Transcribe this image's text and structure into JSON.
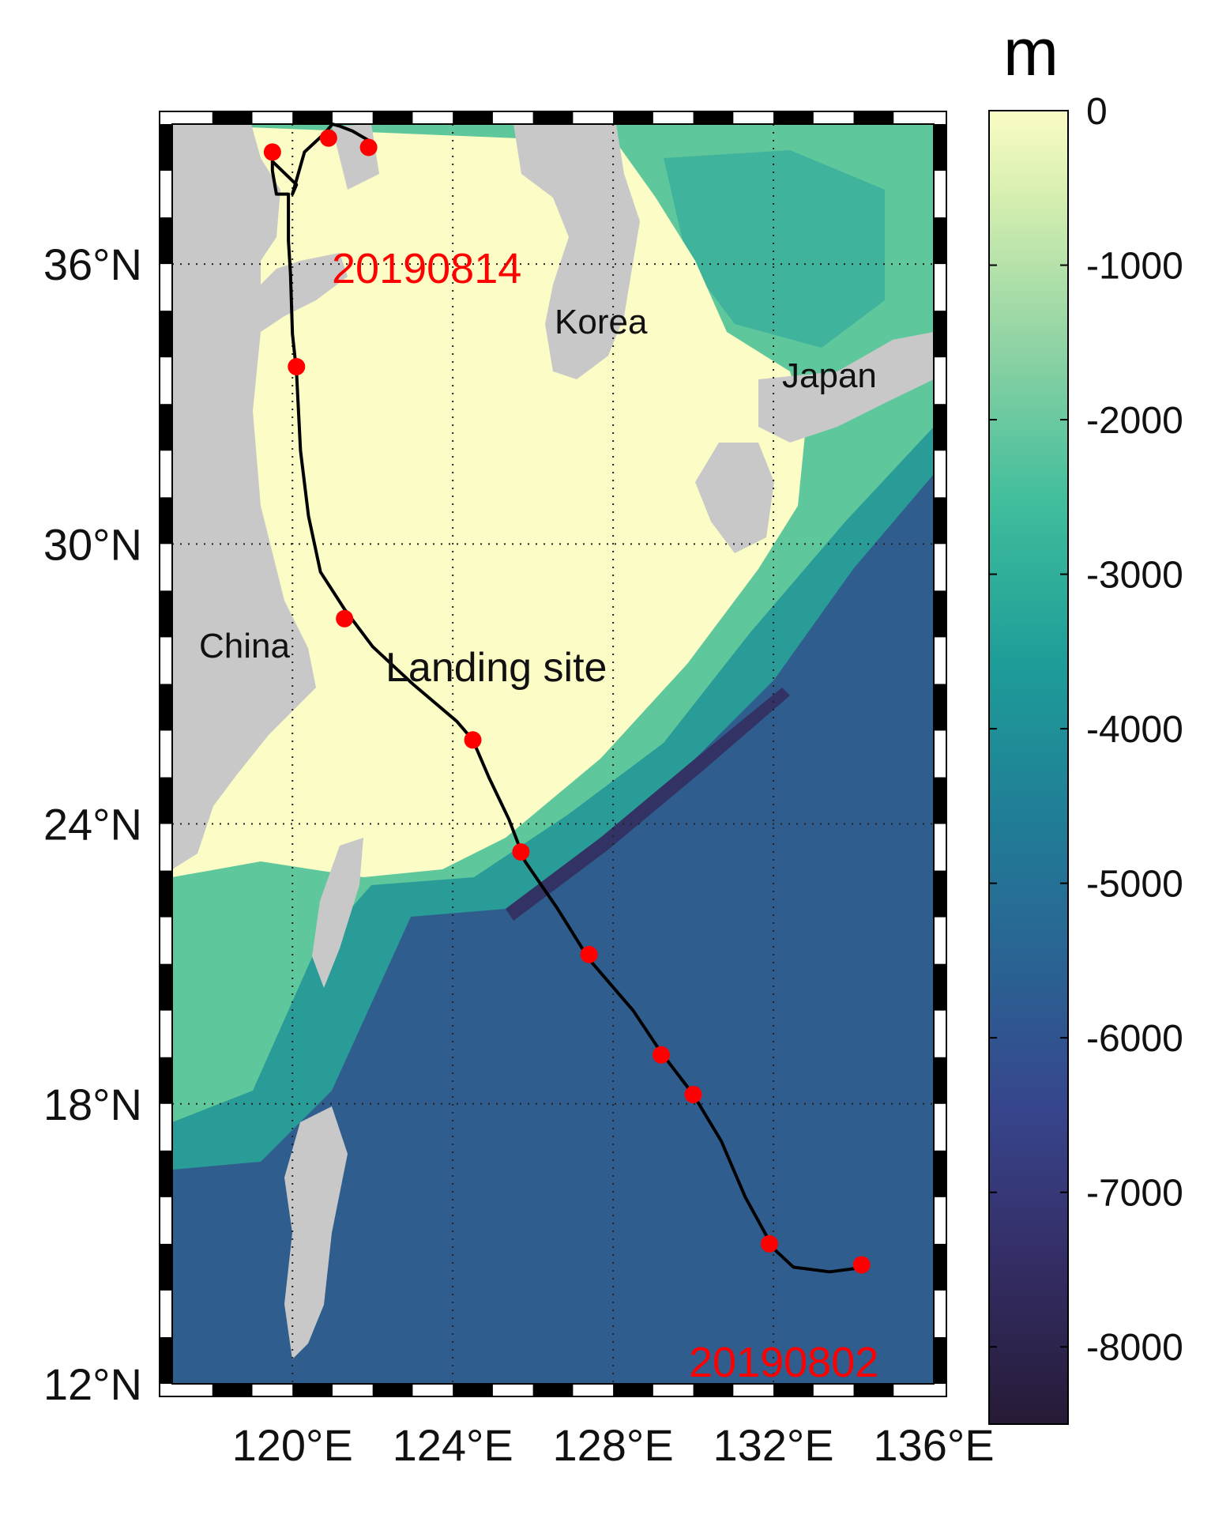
{
  "map": {
    "lon_ticks": [
      "120°E",
      "124°E",
      "128°E",
      "132°E",
      "136°E"
    ],
    "lat_ticks": [
      "12°N",
      "18°N",
      "24°N",
      "30°N",
      "36°N"
    ],
    "places": {
      "china": "China",
      "korea": "Korea",
      "japan": "Japan",
      "landing_site": "Landing site"
    },
    "dates": {
      "start": "20190802",
      "end": "20190814"
    },
    "colorbar": {
      "unit": "m",
      "ticks": [
        "0",
        "-1000",
        "-2000",
        "-3000",
        "-4000",
        "-5000",
        "-6000",
        "-7000",
        "-8000"
      ]
    },
    "colors": {
      "land": "#c8c8c8",
      "track": "#000000",
      "markers": "#ff0000",
      "shallow": "#fbfcc6",
      "deep": "#2b1d3d"
    }
  },
  "chart_data": {
    "type": "map",
    "xlim": [
      117,
      136
    ],
    "ylim": [
      12,
      39
    ],
    "xticks": [
      120,
      124,
      128,
      132,
      136
    ],
    "yticks": [
      12,
      18,
      24,
      30,
      36
    ],
    "colorbar_range": [
      -8500,
      0
    ],
    "track": {
      "lon": [
        134.3,
        133.4,
        132.5,
        132.0,
        131.3,
        130.7,
        130.0,
        129.2,
        128.5,
        127.4,
        126.6,
        125.8,
        125.4,
        124.9,
        124.5,
        124.1,
        123.0,
        122.0,
        121.3,
        120.7,
        120.4,
        120.2,
        120.1,
        120.0,
        119.95,
        119.9,
        119.9,
        119.6,
        119.5,
        119.5,
        120.1,
        120.0,
        120.3,
        120.8,
        121.0,
        121.2,
        121.5,
        121.8,
        122.0
      ],
      "lat": [
        14.5,
        14.4,
        14.5,
        14.9,
        16.0,
        17.2,
        18.2,
        19.1,
        20.0,
        21.1,
        22.2,
        23.2,
        24.1,
        25.0,
        25.8,
        26.2,
        27.0,
        27.8,
        28.6,
        29.4,
        30.6,
        32.0,
        33.7,
        34.5,
        35.8,
        36.5,
        37.5,
        37.5,
        38.0,
        38.2,
        37.7,
        37.5,
        38.4,
        38.8,
        39.0,
        38.95,
        38.85,
        38.7,
        38.6
      ]
    },
    "markers": {
      "lon": [
        134.2,
        131.9,
        130.0,
        129.2,
        127.4,
        125.7,
        124.5,
        121.3,
        120.1,
        119.5,
        120.9,
        121.9
      ],
      "lat": [
        14.55,
        15.0,
        18.2,
        19.05,
        21.2,
        23.4,
        25.8,
        28.4,
        33.8,
        38.4,
        38.7,
        38.5
      ]
    }
  }
}
